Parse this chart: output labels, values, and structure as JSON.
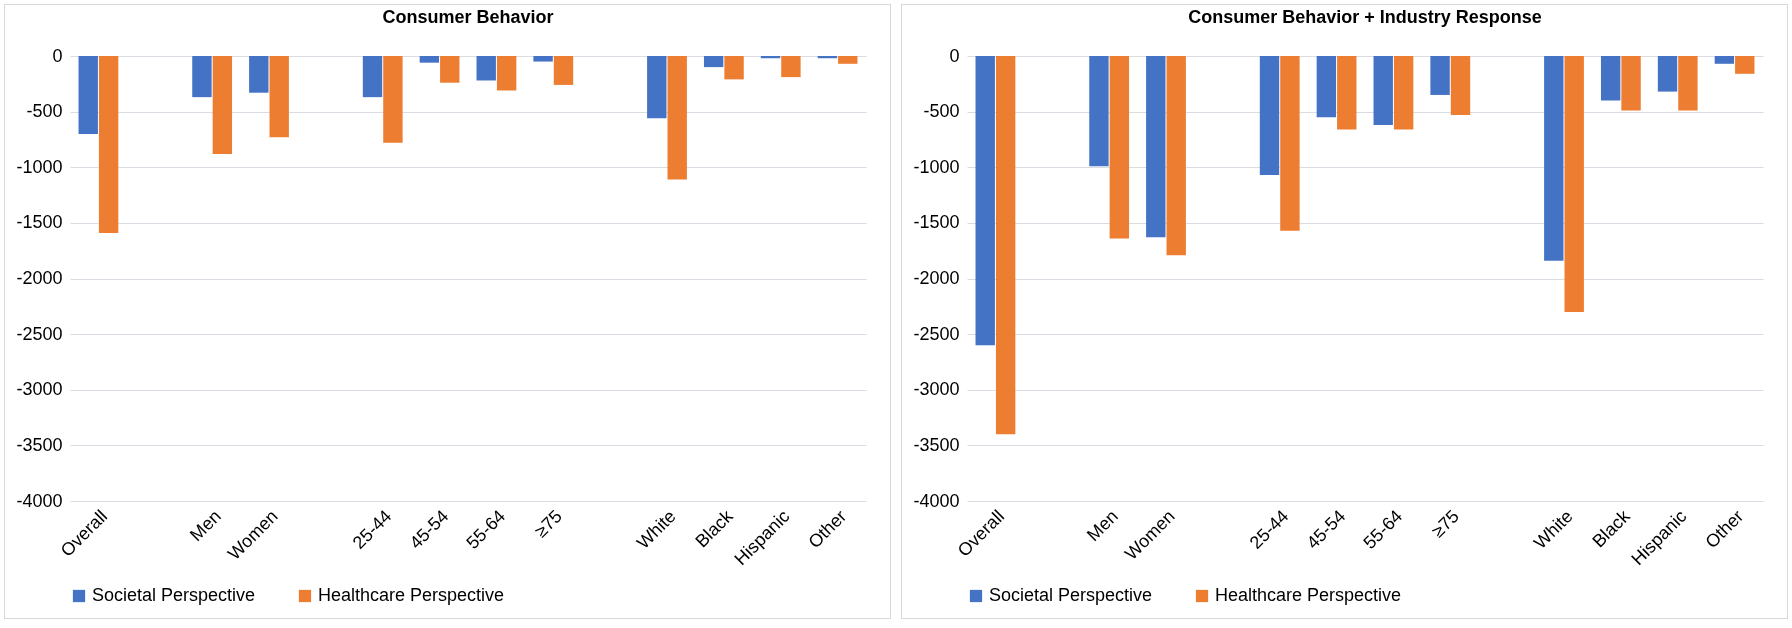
{
  "chart_data": [
    {
      "type": "bar",
      "title": "Consumer Behavior",
      "categories": [
        "Overall",
        null,
        "Men",
        "Women",
        null,
        "25-44",
        "45-54",
        "55-64",
        "≥75",
        null,
        "White",
        "Black",
        "Hispanic",
        "Other"
      ],
      "series": [
        {
          "name": "Societal Perspective",
          "color": "#4472c4",
          "values": [
            -700,
            null,
            -370,
            -330,
            null,
            -370,
            -60,
            -220,
            -50,
            null,
            -560,
            -100,
            -20,
            -20
          ]
        },
        {
          "name": "Healthcare Perspective",
          "color": "#ed7d31",
          "values": [
            -1590,
            null,
            -880,
            -730,
            null,
            -780,
            -240,
            -310,
            -260,
            null,
            -1110,
            -210,
            -190,
            -70
          ]
        }
      ],
      "ylim": [
        -4000,
        0
      ],
      "yticks": [
        0,
        -500,
        -1000,
        -1500,
        -2000,
        -2500,
        -3000,
        -3500,
        -4000
      ],
      "grid": "y",
      "legend": "bottom"
    },
    {
      "type": "bar",
      "title": "Consumer Behavior + Industry Response",
      "categories": [
        "Overall",
        null,
        "Men",
        "Women",
        null,
        "25-44",
        "45-54",
        "55-64",
        "≥75",
        null,
        "White",
        "Black",
        "Hispanic",
        "Other"
      ],
      "series": [
        {
          "name": "Societal Perspective",
          "color": "#4472c4",
          "values": [
            -2600,
            null,
            -990,
            -1630,
            null,
            -1070,
            -550,
            -620,
            -350,
            null,
            -1840,
            -400,
            -320,
            -70
          ]
        },
        {
          "name": "Healthcare Perspective",
          "color": "#ed7d31",
          "values": [
            -3400,
            null,
            -1640,
            -1790,
            null,
            -1570,
            -660,
            -660,
            -530,
            null,
            -2300,
            -490,
            -490,
            -160
          ]
        }
      ],
      "ylim": [
        -4000,
        0
      ],
      "yticks": [
        0,
        -500,
        -1000,
        -1500,
        -2000,
        -2500,
        -3000,
        -3500,
        -4000
      ],
      "grid": "y",
      "legend": "bottom"
    }
  ]
}
